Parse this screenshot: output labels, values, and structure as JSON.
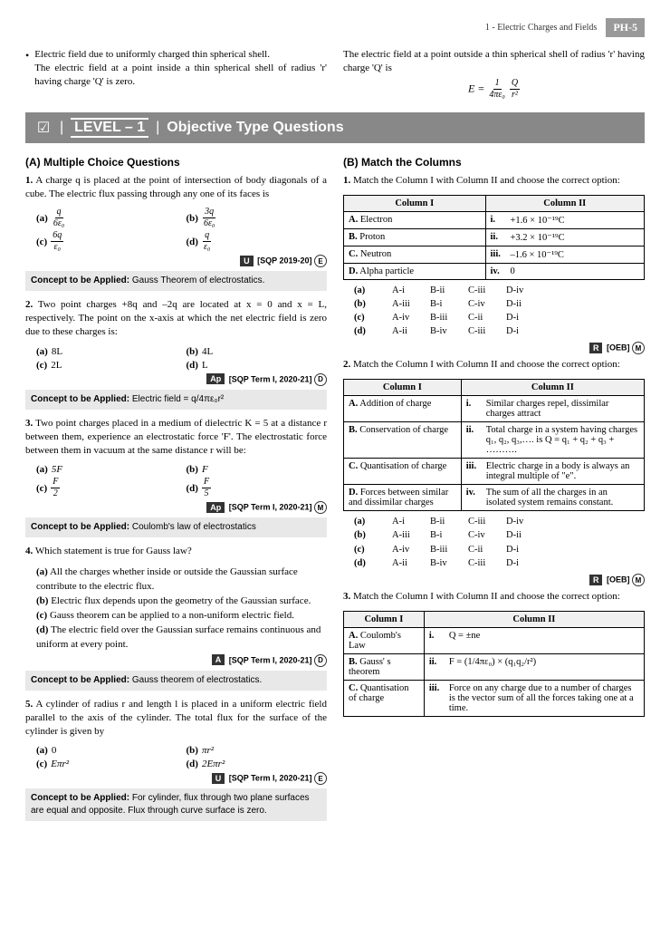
{
  "header": {
    "chapter": "1 - Electric Charges and Fields",
    "page": "PH-5"
  },
  "intro": {
    "left": [
      "Electric field due to uniformly charged thin spherical shell.",
      "The electric field at a point inside a thin spherical shell of radius 'r' having charge 'Q' is zero."
    ],
    "right": "The electric field at a point outside a thin spherical shell of radius 'r' having charge 'Q' is",
    "formula_lhs": "E =",
    "formula_f1_num": "1",
    "formula_f1_den": "4πε₀",
    "formula_f2_num": "Q",
    "formula_f2_den": "r²"
  },
  "banner": {
    "level": "LEVEL – 1",
    "title": "Objective Type Questions"
  },
  "sectionA": {
    "title": "(A) Multiple Choice Questions",
    "q1": {
      "num": "1.",
      "text": "A charge q is placed at the point of intersection of body diagonals of a cube. The electric flux passing through any one of its faces is",
      "a_num": "q",
      "a_den": "6ε₀",
      "b_num": "3q",
      "b_den": "6ε₀",
      "c_num": "6q",
      "c_den": "ε₀",
      "d_num": "q",
      "d_den": "ε₀",
      "tag": "U",
      "src": "[SQP 2019-20]",
      "circ": "E",
      "concept": "Gauss Theorem of electrostatics."
    },
    "q2": {
      "num": "2.",
      "text": "Two point charges +8q and –2q are located at x = 0 and x = L, respectively. The point on the x-axis at which the net electric field is zero due to these charges is:",
      "a": "8L",
      "b": "4L",
      "c": "2L",
      "d": "L",
      "tag": "Ap",
      "src": "[SQP Term I, 2020-21]",
      "circ": "D",
      "concept": "Electric field = q/4πε₀r²"
    },
    "q3": {
      "num": "3.",
      "text": "Two point charges placed in a medium of dielectric K = 5 at a distance r between them, experience an electrostatic force 'F'. The electrostatic force between them in vacuum at the same distance r will be:",
      "a": "5F",
      "b": "F",
      "c_num": "F",
      "c_den": "2",
      "d_num": "F",
      "d_den": "5",
      "tag": "Ap",
      "src": "[SQP Term I, 2020-21]",
      "circ": "M",
      "concept": "Coulomb's law of electrostatics"
    },
    "q4": {
      "num": "4.",
      "text": "Which statement is true for Gauss law?",
      "a": "All the charges whether inside or outside the Gaussian surface contribute to the electric flux.",
      "b": "Electric flux depends upon the geometry of the Gaussian surface.",
      "c": "Gauss theorem can be applied to a non-uniform electric field.",
      "d": "The electric field over the Gaussian surface remains continuous and uniform at every point.",
      "tag": "A",
      "src": "[SQP Term I, 2020-21]",
      "circ": "D",
      "concept": "Gauss theorem of electrostatics."
    },
    "q5": {
      "num": "5.",
      "text": "A cylinder of radius r and length l is placed in a uniform electric field parallel to the axis of the cylinder. The total flux for the surface of the cylinder is given by",
      "a": "0",
      "b": "πr²",
      "c": "Eπr²",
      "d": "2Eπr²",
      "tag": "U",
      "src": "[SQP Term I, 2020-21]",
      "circ": "E",
      "concept": "For cylinder, flux through two plane surfaces are equal and opposite. Flux through curve surface is zero."
    }
  },
  "sectionB": {
    "title": "(B) Match the Columns",
    "q1": {
      "num": "1.",
      "text": "Match the Column I with Column II and choose the correct option:",
      "h1": "Column I",
      "h2": "Column II",
      "rows": [
        [
          "A.",
          "Electron",
          "i.",
          "+1.6 × 10⁻¹⁹C"
        ],
        [
          "B.",
          "Proton",
          "ii.",
          "+3.2 × 10⁻¹⁹C"
        ],
        [
          "C.",
          "Neutron",
          "iii.",
          "–1.6 × 10⁻¹⁹C"
        ],
        [
          "D.",
          "Alpha particle",
          "iv.",
          "0"
        ]
      ],
      "opts": [
        [
          "(a)",
          "A-i",
          "B-ii",
          "C-iii",
          "D-iv"
        ],
        [
          "(b)",
          "A-iii",
          "B-i",
          "C-iv",
          "D-ii"
        ],
        [
          "(c)",
          "A-iv",
          "B-iii",
          "C-ii",
          "D-i"
        ],
        [
          "(d)",
          "A-ii",
          "B-iv",
          "C-iii",
          "D-i"
        ]
      ],
      "tag": "R",
      "src": "[OEB]",
      "circ": "M"
    },
    "q2": {
      "num": "2.",
      "text": "Match the Column I with Column II and choose the correct option:",
      "h1": "Column I",
      "h2": "Column II",
      "rows": [
        [
          "A.",
          "Addition of charge",
          "i.",
          "Similar charges repel, dissimilar charges attract"
        ],
        [
          "B.",
          "Conservation of charge",
          "ii.",
          "Total charge in a system having charges q₁, q₂, q₃,…. is Q = q₁ + q₂ + q₃ + ………."
        ],
        [
          "C.",
          "Quantisation of charge",
          "iii.",
          "Electric charge in a body is always an integral multiple of \"e\"."
        ],
        [
          "D.",
          "Forces between similar and dissimilar charges",
          "iv.",
          "The sum of all the charges in an isolated system remains constant."
        ]
      ],
      "opts": [
        [
          "(a)",
          "A-i",
          "B-ii",
          "C-iii",
          "D-iv"
        ],
        [
          "(b)",
          "A-iii",
          "B-i",
          "C-iv",
          "D-ii"
        ],
        [
          "(c)",
          "A-iv",
          "B-iii",
          "C-ii",
          "D-i"
        ],
        [
          "(d)",
          "A-ii",
          "B-iv",
          "C-iii",
          "D-i"
        ]
      ],
      "tag": "R",
      "src": "[OEB]",
      "circ": "M"
    },
    "q3": {
      "num": "3.",
      "text": "Match the Column I with Column II and choose the correct option:",
      "h1": "Column I",
      "h2": "Column II",
      "rows": [
        [
          "A.",
          "Coulomb's Law",
          "i.",
          "Q = ±ne"
        ],
        [
          "B.",
          "Gauss' s theorem",
          "ii.",
          "F = (1/4πε₀) × (q₁q₂/r²)"
        ],
        [
          "C.",
          "Quantisation of charge",
          "iii.",
          "Force on any charge due to a number of charges is the vector sum of all the forces taking one at a time."
        ]
      ]
    }
  },
  "labels": {
    "a": "(a)",
    "b": "(b)",
    "c": "(c)",
    "d": "(d)",
    "conceptPrefix": "Concept to be Applied:"
  }
}
